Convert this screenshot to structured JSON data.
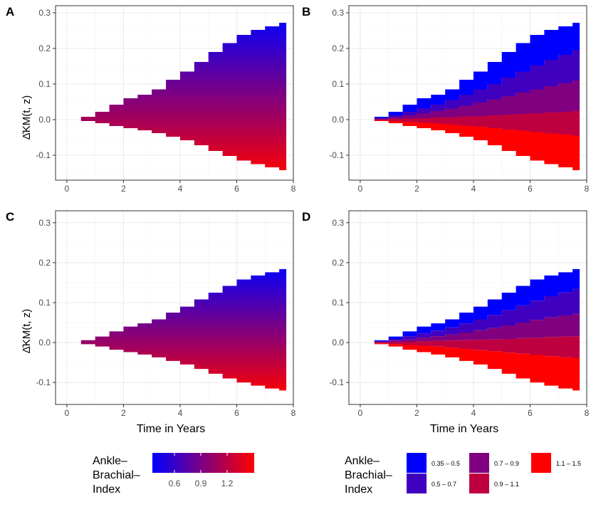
{
  "chart_data": [
    {
      "panel": "A",
      "type": "area",
      "style": "continuous",
      "xlabel": "",
      "ylabel": "Δ̂KM(t, z)",
      "xlim": [
        -0.4,
        8.0
      ],
      "ylim": [
        -0.17,
        0.32
      ],
      "xticks": [
        "0",
        "2",
        "4",
        "6",
        "8"
      ],
      "yticks": [
        "-0.1",
        "0.0",
        "0.1",
        "0.2",
        "0.3"
      ],
      "upper": {
        "x": [
          0,
          0.5,
          1,
          1.5,
          2,
          2.5,
          3,
          3.5,
          4,
          4.5,
          5,
          5.5,
          6,
          6.5,
          7,
          7.5,
          7.75
        ],
        "y": [
          0,
          0.008,
          0.022,
          0.042,
          0.06,
          0.07,
          0.085,
          0.112,
          0.135,
          0.162,
          0.19,
          0.215,
          0.238,
          0.252,
          0.262,
          0.272,
          0.29
        ]
      },
      "lower": {
        "x": [
          0,
          0.5,
          1,
          1.5,
          2,
          2.5,
          3,
          3.5,
          4,
          4.5,
          5,
          5.5,
          6,
          6.5,
          7,
          7.5,
          7.75
        ],
        "y": [
          0,
          -0.004,
          -0.01,
          -0.018,
          -0.024,
          -0.03,
          -0.038,
          -0.048,
          -0.058,
          -0.072,
          -0.088,
          -0.102,
          -0.115,
          -0.125,
          -0.134,
          -0.142,
          -0.158
        ]
      }
    },
    {
      "panel": "B",
      "type": "area",
      "style": "banded",
      "xlabel": "",
      "ylabel": "",
      "xlim": [
        -0.4,
        8.0
      ],
      "ylim": [
        -0.17,
        0.32
      ],
      "xticks": [
        "0",
        "2",
        "4",
        "6",
        "8"
      ],
      "yticks": [
        "-0.1",
        "0.0",
        "0.1",
        "0.2",
        "0.3"
      ],
      "x": [
        0,
        0.5,
        1,
        1.5,
        2,
        2.5,
        3,
        3.5,
        4,
        4.5,
        5,
        5.5,
        6,
        6.5,
        7,
        7.5,
        7.75
      ],
      "band_edges": [
        [
          0,
          0.008,
          0.022,
          0.042,
          0.06,
          0.07,
          0.085,
          0.112,
          0.135,
          0.162,
          0.19,
          0.215,
          0.238,
          0.252,
          0.262,
          0.272,
          0.29
        ],
        [
          0,
          0.005,
          0.012,
          0.022,
          0.032,
          0.042,
          0.055,
          0.07,
          0.085,
          0.1,
          0.118,
          0.135,
          0.152,
          0.168,
          0.182,
          0.195,
          0.21
        ],
        [
          0,
          0.003,
          0.007,
          0.012,
          0.018,
          0.024,
          0.031,
          0.039,
          0.048,
          0.057,
          0.066,
          0.076,
          0.085,
          0.094,
          0.102,
          0.11,
          0.115
        ],
        [
          0,
          0.001,
          0.002,
          0.003,
          0.004,
          0.006,
          0.007,
          0.009,
          0.01,
          0.012,
          0.014,
          0.016,
          0.018,
          0.02,
          0.022,
          0.024,
          0.025
        ],
        [
          0,
          -0.002,
          -0.004,
          -0.006,
          -0.009,
          -0.011,
          -0.014,
          -0.017,
          -0.02,
          -0.024,
          -0.028,
          -0.031,
          -0.035,
          -0.039,
          -0.042,
          -0.045,
          -0.048
        ],
        [
          0,
          -0.004,
          -0.01,
          -0.018,
          -0.024,
          -0.03,
          -0.038,
          -0.048,
          -0.058,
          -0.072,
          -0.088,
          -0.102,
          -0.115,
          -0.125,
          -0.134,
          -0.142,
          -0.158
        ]
      ]
    },
    {
      "panel": "C",
      "type": "area",
      "style": "continuous",
      "xlabel": "Time in Years",
      "ylabel": "Δ̂KM(t, z)",
      "xlim": [
        -0.4,
        8.0
      ],
      "ylim": [
        -0.155,
        0.33
      ],
      "xticks": [
        "0",
        "2",
        "4",
        "6",
        "8"
      ],
      "yticks": [
        "-0.1",
        "0.0",
        "0.1",
        "0.2",
        "0.3"
      ],
      "upper": {
        "x": [
          0,
          0.5,
          1,
          1.5,
          2,
          2.5,
          3,
          3.5,
          4,
          4.5,
          5,
          5.5,
          6,
          6.5,
          7,
          7.5,
          7.75
        ],
        "y": [
          0,
          0.006,
          0.015,
          0.028,
          0.04,
          0.048,
          0.058,
          0.075,
          0.09,
          0.108,
          0.125,
          0.142,
          0.158,
          0.168,
          0.176,
          0.184,
          0.195
        ]
      },
      "lower": {
        "x": [
          0,
          0.5,
          1,
          1.5,
          2,
          2.5,
          3,
          3.5,
          4,
          4.5,
          5,
          5.5,
          6,
          6.5,
          7,
          7.5,
          7.75
        ],
        "y": [
          0,
          -0.004,
          -0.01,
          -0.018,
          -0.024,
          -0.03,
          -0.037,
          -0.046,
          -0.055,
          -0.066,
          -0.078,
          -0.09,
          -0.1,
          -0.108,
          -0.115,
          -0.12,
          -0.13
        ]
      }
    },
    {
      "panel": "D",
      "type": "area",
      "style": "banded",
      "xlabel": "Time in Years",
      "ylabel": "",
      "xlim": [
        -0.4,
        8.0
      ],
      "ylim": [
        -0.155,
        0.33
      ],
      "xticks": [
        "0",
        "2",
        "4",
        "6",
        "8"
      ],
      "yticks": [
        "-0.1",
        "0.0",
        "0.1",
        "0.2",
        "0.3"
      ],
      "x": [
        0,
        0.5,
        1,
        1.5,
        2,
        2.5,
        3,
        3.5,
        4,
        4.5,
        5,
        5.5,
        6,
        6.5,
        7,
        7.5,
        7.75
      ],
      "band_edges": [
        [
          0,
          0.006,
          0.015,
          0.028,
          0.04,
          0.048,
          0.058,
          0.075,
          0.09,
          0.108,
          0.125,
          0.142,
          0.158,
          0.168,
          0.176,
          0.184,
          0.195
        ],
        [
          0,
          0.004,
          0.009,
          0.016,
          0.023,
          0.03,
          0.038,
          0.048,
          0.058,
          0.069,
          0.081,
          0.093,
          0.105,
          0.116,
          0.126,
          0.134,
          0.14
        ],
        [
          0,
          0.002,
          0.005,
          0.008,
          0.012,
          0.016,
          0.02,
          0.025,
          0.031,
          0.037,
          0.043,
          0.05,
          0.057,
          0.063,
          0.068,
          0.072,
          0.075
        ],
        [
          0,
          0.0005,
          0.001,
          0.002,
          0.003,
          0.004,
          0.005,
          0.006,
          0.007,
          0.008,
          0.009,
          0.011,
          0.012,
          0.014,
          0.015,
          0.016,
          0.017
        ],
        [
          0,
          -0.002,
          -0.004,
          -0.006,
          -0.008,
          -0.01,
          -0.013,
          -0.016,
          -0.019,
          -0.022,
          -0.025,
          -0.028,
          -0.031,
          -0.034,
          -0.037,
          -0.039,
          -0.041
        ],
        [
          0,
          -0.004,
          -0.01,
          -0.018,
          -0.024,
          -0.03,
          -0.037,
          -0.046,
          -0.055,
          -0.066,
          -0.078,
          -0.09,
          -0.1,
          -0.108,
          -0.115,
          -0.12,
          -0.13
        ]
      ]
    }
  ],
  "band_colors": [
    "#0000FF",
    "#4000BF",
    "#800080",
    "#BF0040",
    "#FF0000"
  ],
  "gradient": {
    "low_color": "#0000FF",
    "high_color": "#FF0000",
    "ticks": [
      "0.6",
      "0.9",
      "1.2"
    ]
  },
  "legend_continuous": {
    "title_lines": [
      "Ankle–",
      "Brachial–",
      "Index"
    ]
  },
  "legend_discrete": {
    "title_lines": [
      "Ankle–",
      "Brachial–",
      "Index"
    ],
    "items": [
      "0.35 – 0.5",
      "0.5 – 0.7",
      "0.7 – 0.9",
      "0.9 – 1.1",
      "1.1 – 1.5"
    ]
  }
}
